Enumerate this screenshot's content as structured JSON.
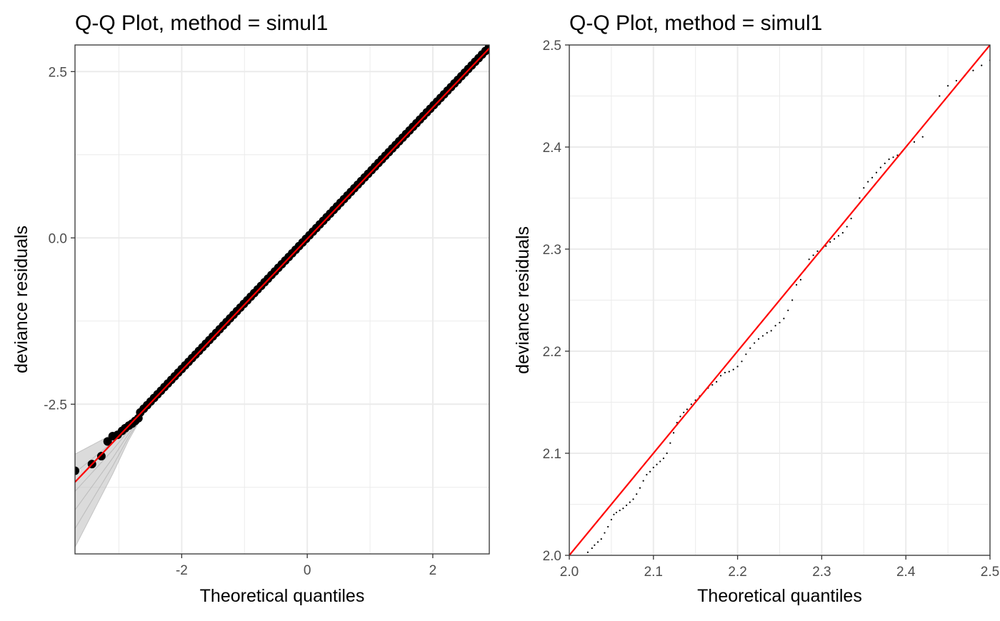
{
  "chart_data": [
    {
      "type": "scatter",
      "title": "Q-Q Plot, method = simul1",
      "xlabel": "Theoretical quantiles",
      "ylabel": "deviance residuals",
      "xlim": [
        -3.7,
        2.9
      ],
      "ylim": [
        -4.75,
        2.9
      ],
      "x_ticks": [
        -2,
        0,
        2
      ],
      "x_tick_labels": [
        "-2",
        "0",
        "2"
      ],
      "y_ticks": [
        -2.5,
        0,
        2.5
      ],
      "y_tick_labels": [
        "-2.5",
        "0.0",
        "2.5"
      ],
      "grid": true,
      "point_style": "large",
      "reference_line": {
        "x": [
          -3.7,
          2.9
        ],
        "y": [
          -3.67,
          2.85
        ],
        "color": "#ff0000"
      },
      "envelope_color": "#bdbdbd",
      "series": [
        {
          "x": [
            -3.7,
            -3.43,
            -3.28,
            -3.18,
            -3.1,
            -3.02,
            -2.95,
            -2.9,
            -2.84,
            -2.79,
            -2.74,
            -2.69
          ],
          "y": [
            -3.5,
            -3.4,
            -3.28,
            -3.06,
            -2.98,
            -2.96,
            -2.9,
            -2.86,
            -2.82,
            -2.79,
            -2.75,
            -2.71
          ]
        }
      ],
      "envelope": {
        "lower": {
          "x": [
            -3.7,
            -3.4,
            -3.1,
            -2.85,
            -2.7
          ],
          "y": [
            -4.65,
            -4.1,
            -3.55,
            -3.05,
            -2.8
          ]
        },
        "upper": {
          "x": [
            -3.7,
            -3.4,
            -3.1,
            -2.85,
            -2.7
          ],
          "y": [
            -3.25,
            -3.1,
            -2.95,
            -2.8,
            -2.7
          ]
        }
      }
    },
    {
      "type": "scatter",
      "title": "Q-Q Plot, method = simul1",
      "xlabel": "Theoretical quantiles",
      "ylabel": "deviance residuals",
      "xlim": [
        2.0,
        2.5
      ],
      "ylim": [
        2.0,
        2.5
      ],
      "x_ticks": [
        2.0,
        2.1,
        2.2,
        2.3,
        2.4,
        2.5
      ],
      "x_tick_labels": [
        "2.0",
        "2.1",
        "2.2",
        "2.3",
        "2.4",
        "2.5"
      ],
      "y_ticks": [
        2.0,
        2.1,
        2.2,
        2.3,
        2.4,
        2.5
      ],
      "y_tick_labels": [
        "2.0",
        "2.1",
        "2.2",
        "2.3",
        "2.4",
        "2.5"
      ],
      "grid": true,
      "point_style": "small",
      "reference_line": {
        "x": [
          2.0,
          2.5
        ],
        "y": [
          2.0,
          2.5
        ],
        "color": "#ff0000"
      },
      "series": [
        {
          "x": [
            2.022,
            2.027,
            2.03,
            2.034,
            2.038,
            2.042,
            2.046,
            2.05,
            2.053,
            2.056,
            2.06,
            2.064,
            2.068,
            2.072,
            2.076,
            2.08,
            2.084,
            2.088,
            2.092,
            2.096,
            2.1,
            2.104,
            2.108,
            2.112,
            2.116,
            2.12,
            2.124,
            2.128,
            2.132,
            2.136,
            2.14,
            2.145,
            2.15,
            2.155,
            2.16,
            2.165,
            2.17,
            2.175,
            2.18,
            2.185,
            2.19,
            2.195,
            2.2,
            2.205,
            2.21,
            2.215,
            2.22,
            2.225,
            2.23,
            2.235,
            2.24,
            2.245,
            2.25,
            2.255,
            2.26,
            2.265,
            2.27,
            2.275,
            2.28,
            2.285,
            2.29,
            2.295,
            2.3,
            2.305,
            2.31,
            2.315,
            2.32,
            2.325,
            2.33,
            2.335,
            2.34,
            2.345,
            2.35,
            2.355,
            2.36,
            2.365,
            2.37,
            2.375,
            2.38,
            2.385,
            2.39,
            2.395,
            2.4,
            2.41,
            2.42,
            2.43,
            2.44,
            2.45,
            2.46,
            2.47,
            2.48,
            2.49,
            2.5
          ],
          "y": [
            2.003,
            2.007,
            2.01,
            2.013,
            2.016,
            2.022,
            2.028,
            2.035,
            2.04,
            2.042,
            2.044,
            2.046,
            2.049,
            2.052,
            2.055,
            2.06,
            2.066,
            2.073,
            2.079,
            2.082,
            2.086,
            2.089,
            2.092,
            2.095,
            2.1,
            2.11,
            2.12,
            2.13,
            2.136,
            2.14,
            2.143,
            2.148,
            2.152,
            2.156,
            2.16,
            2.164,
            2.167,
            2.17,
            2.176,
            2.179,
            2.18,
            2.182,
            2.185,
            2.19,
            2.197,
            2.203,
            2.208,
            2.212,
            2.215,
            2.218,
            2.22,
            2.225,
            2.228,
            2.232,
            2.24,
            2.25,
            2.265,
            2.27,
            2.28,
            2.29,
            2.294,
            2.298,
            2.3,
            2.303,
            2.307,
            2.31,
            2.313,
            2.316,
            2.322,
            2.33,
            2.34,
            2.35,
            2.36,
            2.366,
            2.37,
            2.375,
            2.38,
            2.384,
            2.388,
            2.39,
            2.392,
            2.395,
            2.4,
            2.405,
            2.41,
            2.43,
            2.45,
            2.46,
            2.465,
            2.47,
            2.475,
            2.48,
            2.485
          ]
        }
      ]
    }
  ]
}
